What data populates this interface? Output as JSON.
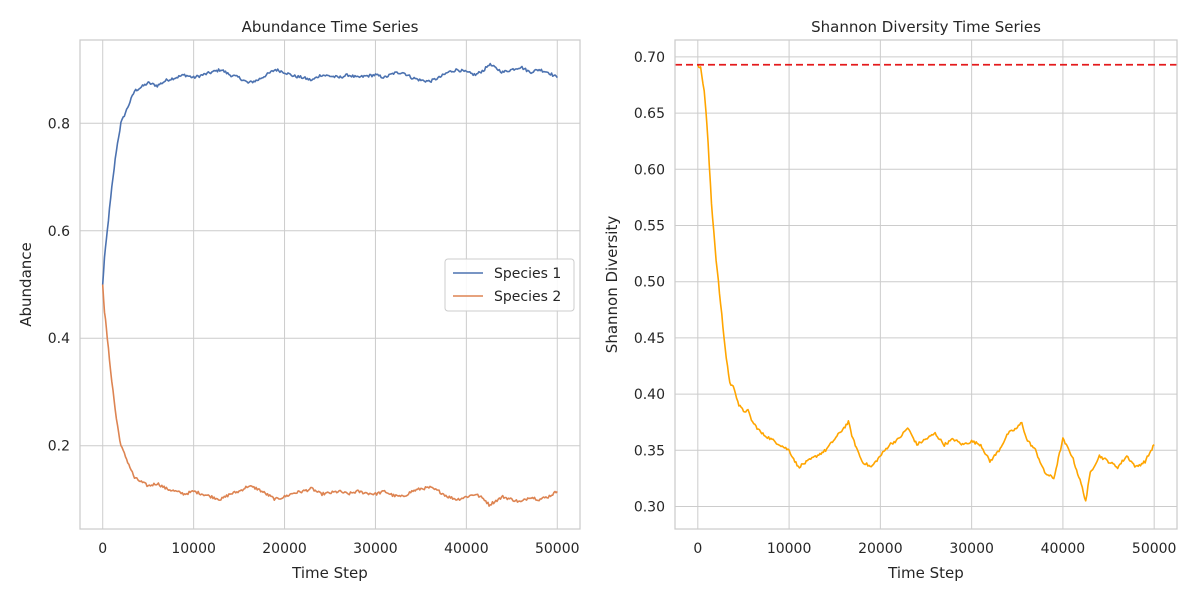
{
  "chart_data": [
    {
      "type": "line",
      "title": "Abundance Time Series",
      "xlabel": "Time Step",
      "ylabel": "Abundance",
      "xlim": [
        -2500,
        52500
      ],
      "ylim": [
        0.045,
        0.955
      ],
      "xticks": [
        0,
        10000,
        20000,
        30000,
        40000,
        50000
      ],
      "xtick_labels": [
        "0",
        "10000",
        "20000",
        "30000",
        "40000",
        "50000"
      ],
      "yticks": [
        0.2,
        0.4,
        0.6,
        0.8
      ],
      "ytick_labels": [
        "0.2",
        "0.4",
        "0.6",
        "0.8"
      ],
      "grid": true,
      "legend": "center-right",
      "series": [
        {
          "name": "Species 1",
          "color": "#4c72b0",
          "x": [
            0,
            200,
            500,
            1000,
            1500,
            2000,
            2500,
            3000,
            3500,
            4000,
            5000,
            6000,
            7000,
            8000,
            9000,
            10000,
            11000,
            12000,
            13000,
            14000,
            15000,
            16000,
            17000,
            18000,
            19000,
            20000,
            21000,
            22000,
            23000,
            24000,
            25000,
            26000,
            27000,
            28000,
            29000,
            30000,
            31000,
            32000,
            33000,
            34000,
            35000,
            36000,
            37000,
            38000,
            39000,
            40000,
            41000,
            42000,
            42500,
            43000,
            44000,
            45000,
            46000,
            47000,
            48000,
            49000,
            50000
          ],
          "y": [
            0.5,
            0.55,
            0.6,
            0.68,
            0.75,
            0.8,
            0.82,
            0.84,
            0.86,
            0.865,
            0.875,
            0.87,
            0.88,
            0.885,
            0.89,
            0.885,
            0.89,
            0.895,
            0.9,
            0.89,
            0.885,
            0.875,
            0.88,
            0.89,
            0.9,
            0.895,
            0.888,
            0.885,
            0.88,
            0.89,
            0.888,
            0.885,
            0.89,
            0.885,
            0.888,
            0.89,
            0.885,
            0.893,
            0.895,
            0.885,
            0.88,
            0.878,
            0.885,
            0.895,
            0.9,
            0.895,
            0.89,
            0.9,
            0.91,
            0.905,
            0.895,
            0.9,
            0.905,
            0.895,
            0.9,
            0.895,
            0.885
          ]
        },
        {
          "name": "Species 2",
          "color": "#dd8452",
          "x": [
            0,
            200,
            500,
            1000,
            1500,
            2000,
            2500,
            3000,
            3500,
            4000,
            5000,
            6000,
            7000,
            8000,
            9000,
            10000,
            11000,
            12000,
            13000,
            14000,
            15000,
            16000,
            17000,
            18000,
            19000,
            20000,
            21000,
            22000,
            23000,
            24000,
            25000,
            26000,
            27000,
            28000,
            29000,
            30000,
            31000,
            32000,
            33000,
            34000,
            35000,
            36000,
            37000,
            38000,
            39000,
            40000,
            41000,
            42000,
            42500,
            43000,
            44000,
            45000,
            46000,
            47000,
            48000,
            49000,
            50000
          ],
          "y": [
            0.5,
            0.45,
            0.4,
            0.32,
            0.25,
            0.2,
            0.18,
            0.16,
            0.14,
            0.135,
            0.125,
            0.13,
            0.12,
            0.115,
            0.11,
            0.115,
            0.11,
            0.105,
            0.1,
            0.11,
            0.115,
            0.125,
            0.12,
            0.11,
            0.1,
            0.105,
            0.112,
            0.115,
            0.12,
            0.11,
            0.112,
            0.115,
            0.11,
            0.115,
            0.112,
            0.11,
            0.115,
            0.107,
            0.105,
            0.115,
            0.12,
            0.122,
            0.115,
            0.105,
            0.1,
            0.105,
            0.11,
            0.1,
            0.09,
            0.095,
            0.105,
            0.1,
            0.095,
            0.105,
            0.1,
            0.105,
            0.115
          ]
        }
      ]
    },
    {
      "type": "line",
      "title": "Shannon Diversity Time Series",
      "xlabel": "Time Step",
      "ylabel": "Shannon Diversity",
      "xlim": [
        -2500,
        52500
      ],
      "ylim": [
        0.28,
        0.715
      ],
      "xticks": [
        0,
        10000,
        20000,
        30000,
        40000,
        50000
      ],
      "xtick_labels": [
        "0",
        "10000",
        "20000",
        "30000",
        "40000",
        "50000"
      ],
      "yticks": [
        0.3,
        0.35,
        0.4,
        0.45,
        0.5,
        0.55,
        0.6,
        0.65,
        0.7
      ],
      "ytick_labels": [
        "0.30",
        "0.35",
        "0.40",
        "0.45",
        "0.50",
        "0.55",
        "0.60",
        "0.65",
        "0.70"
      ],
      "grid": true,
      "reference_line": {
        "y": 0.693,
        "color": "#e41a1c",
        "style": "dashed"
      },
      "series": [
        {
          "color": "#ffa500",
          "x": [
            0,
            300,
            700,
            1000,
            1500,
            2000,
            2500,
            3000,
            3500,
            4000,
            4500,
            5000,
            5500,
            6000,
            7000,
            8000,
            9000,
            10000,
            11000,
            12000,
            13000,
            14000,
            15000,
            16000,
            16500,
            17000,
            18000,
            19000,
            20000,
            21000,
            22000,
            23000,
            24000,
            25000,
            26000,
            27000,
            28000,
            29000,
            30000,
            31000,
            32000,
            33000,
            34000,
            35000,
            35500,
            36000,
            37000,
            38000,
            39000,
            40000,
            41000,
            42000,
            42500,
            43000,
            44000,
            45000,
            46000,
            47000,
            48000,
            49000,
            50000
          ],
          "y": [
            0.693,
            0.69,
            0.67,
            0.64,
            0.57,
            0.52,
            0.48,
            0.44,
            0.41,
            0.405,
            0.39,
            0.385,
            0.385,
            0.375,
            0.365,
            0.36,
            0.355,
            0.35,
            0.335,
            0.34,
            0.345,
            0.35,
            0.36,
            0.37,
            0.375,
            0.36,
            0.34,
            0.335,
            0.345,
            0.355,
            0.36,
            0.37,
            0.355,
            0.36,
            0.365,
            0.355,
            0.36,
            0.355,
            0.358,
            0.355,
            0.34,
            0.35,
            0.365,
            0.37,
            0.375,
            0.36,
            0.35,
            0.33,
            0.325,
            0.36,
            0.345,
            0.32,
            0.305,
            0.33,
            0.345,
            0.34,
            0.335,
            0.345,
            0.335,
            0.34,
            0.355
          ]
        }
      ]
    }
  ]
}
